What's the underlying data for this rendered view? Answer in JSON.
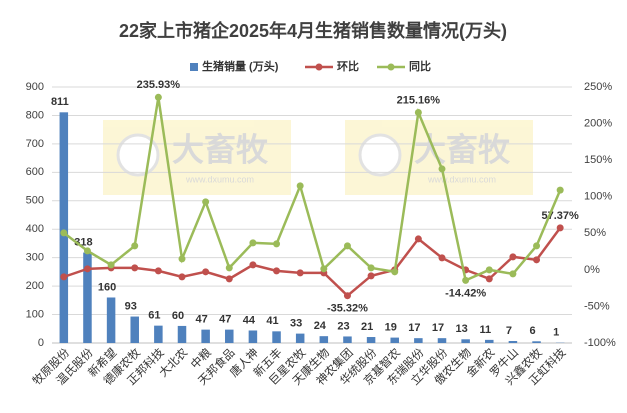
{
  "chart_data": {
    "type": "bar-line",
    "title": "22家上市猪企2025年4月生猪销售数量情况(万头)",
    "categories": [
      "牧原股份",
      "温氏股份",
      "新希望",
      "德康农牧",
      "正邦科技",
      "大北农",
      "中粮",
      "天邦食品",
      "唐人神",
      "新五丰",
      "巨星农牧",
      "天康生物",
      "神农集团",
      "华统股份",
      "京基智农",
      "东瑞股份",
      "立华股份",
      "傲农生物",
      "金新农",
      "罗牛山",
      "兴鑫农牧",
      "正虹科技"
    ],
    "series": [
      {
        "name": "生猪销量 (万头)",
        "type": "bar",
        "color": "#4f81bd",
        "axis": "y",
        "values": [
          811,
          318,
          160,
          93,
          61,
          60,
          47,
          47,
          44,
          41,
          33,
          24,
          23,
          21,
          19,
          17,
          17,
          13,
          11,
          7,
          6,
          1
        ]
      },
      {
        "name": "环比",
        "type": "line",
        "color": "#c0504d",
        "axis": "y2",
        "values": [
          -9.6,
          1.4,
          2.7,
          2.7,
          -1.4,
          -9.6,
          -2.7,
          -12.3,
          6.8,
          -1.4,
          -4.1,
          -4.1,
          -35.32,
          -8.2,
          0,
          42.3,
          16.4,
          0,
          -12.3,
          17.8,
          13.7,
          57.37
        ],
        "value_labels": [
          null,
          null,
          null,
          null,
          null,
          null,
          null,
          null,
          null,
          null,
          null,
          null,
          "-35.32%",
          null,
          null,
          null,
          null,
          null,
          null,
          null,
          null,
          "57.37%"
        ]
      },
      {
        "name": "同比",
        "type": "line",
        "color": "#9bbb59",
        "axis": "y2",
        "values": [
          50.5,
          26,
          6.8,
          32.8,
          235.93,
          15,
          92.9,
          2.7,
          36.9,
          35.5,
          114.8,
          1.4,
          32.8,
          2.7,
          -2.7,
          215.16,
          138,
          -14.42,
          0,
          -5.5,
          32.8,
          109
        ],
        "value_labels": [
          null,
          null,
          null,
          null,
          "235.93%",
          null,
          null,
          null,
          null,
          null,
          null,
          null,
          null,
          null,
          null,
          "215.16%",
          null,
          "-14.42%",
          null,
          null,
          null,
          null
        ]
      }
    ],
    "ylim": [
      0,
      900
    ],
    "yticks": [
      0,
      100,
      200,
      300,
      400,
      500,
      600,
      700,
      800,
      900
    ],
    "y2lim": [
      -100,
      250
    ],
    "y2ticks": [
      {
        "value": -100,
        "label": "-100%"
      },
      {
        "value": -50,
        "label": "-50%"
      },
      {
        "value": 0,
        "label": "0%"
      },
      {
        "value": 50,
        "label": "50%"
      },
      {
        "value": 100,
        "label": "100%"
      },
      {
        "value": 150,
        "label": "150%"
      },
      {
        "value": 200,
        "label": "200%"
      },
      {
        "value": 250,
        "label": "250%"
      }
    ],
    "grid": true,
    "legend": "top",
    "watermark": {
      "text": "大畜牧",
      "url": "www.dxumu.com"
    }
  }
}
